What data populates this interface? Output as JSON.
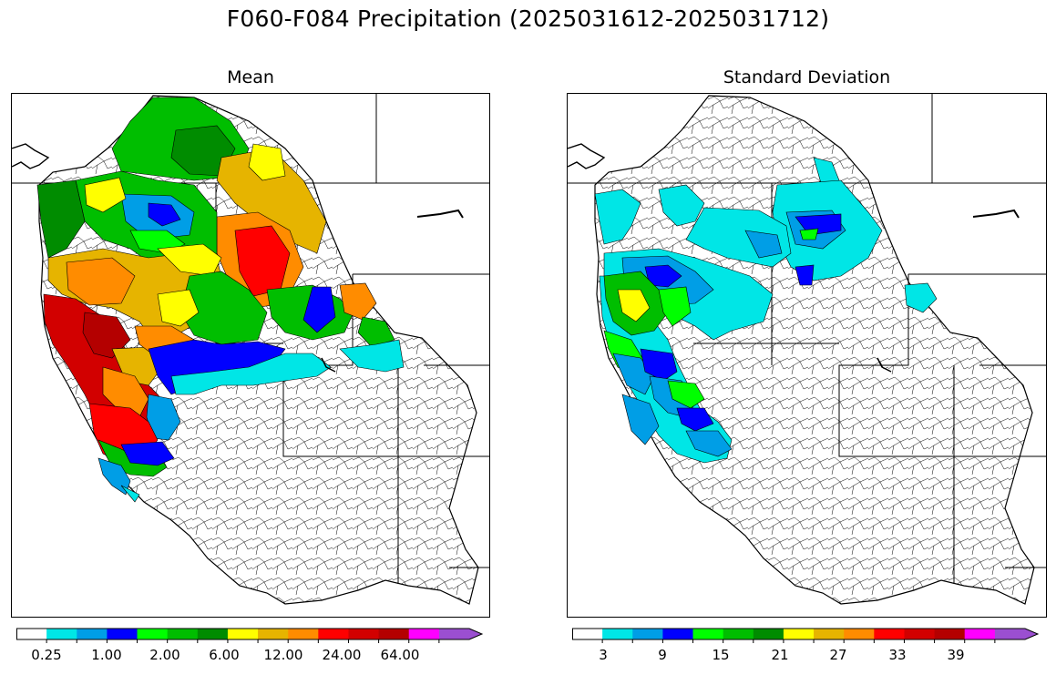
{
  "figure": {
    "suptitle": "F060-F084 Precipitation (2025031612-2025031712)"
  },
  "panels": {
    "mean": {
      "title": "Mean",
      "colorbar": {
        "colors": [
          "#ffffff",
          "#00e6e6",
          "#009ee6",
          "#0000ff",
          "#00ff00",
          "#00be00",
          "#008c00",
          "#ffff00",
          "#e6b400",
          "#ff8c00",
          "#ff0000",
          "#d20000",
          "#b40000",
          "#ff00ff",
          "#9b4fd1"
        ],
        "tick_labels": [
          "0.25",
          "1.00",
          "2.00",
          "6.00",
          "12.00",
          "24.00",
          "64.00"
        ],
        "extend": "max"
      }
    },
    "std": {
      "title": "Standard Deviation",
      "colorbar": {
        "colors": [
          "#ffffff",
          "#00e6e6",
          "#009ee6",
          "#0000ff",
          "#00ff00",
          "#00be00",
          "#008c00",
          "#ffff00",
          "#e6b400",
          "#ff8c00",
          "#ff0000",
          "#d20000",
          "#b40000",
          "#ff00ff",
          "#9b4fd1"
        ],
        "tick_labels": [
          "3",
          "9",
          "15",
          "21",
          "27",
          "33",
          "39"
        ],
        "extend": "max"
      }
    }
  }
}
